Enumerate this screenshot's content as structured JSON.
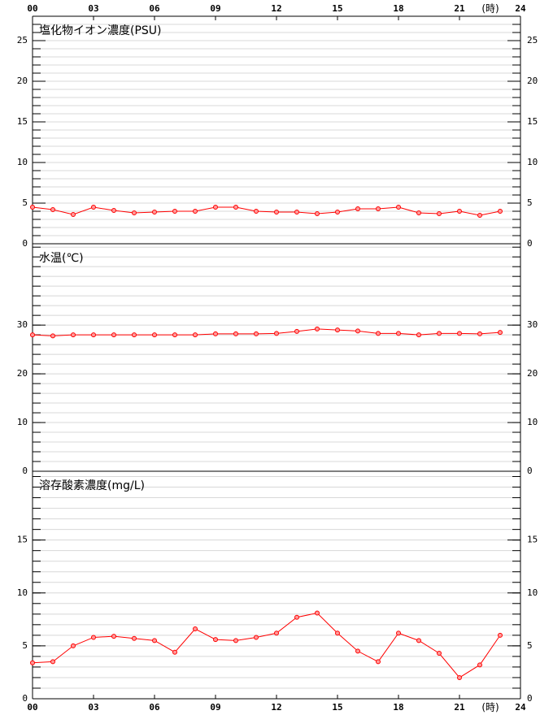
{
  "chart_data": [
    {
      "type": "line",
      "title": "塩化物イオン濃度(PSU)",
      "x": [
        0,
        1,
        2,
        3,
        4,
        5,
        6,
        7,
        8,
        9,
        10,
        11,
        12,
        13,
        14,
        15,
        16,
        17,
        18,
        19,
        20,
        21,
        22,
        23
      ],
      "values": [
        4.5,
        4.2,
        3.6,
        4.5,
        4.1,
        3.8,
        3.9,
        4.0,
        4.0,
        4.5,
        4.5,
        4.0,
        3.9,
        3.9,
        3.7,
        3.9,
        4.3,
        4.3,
        4.5,
        3.8,
        3.7,
        4.0,
        3.5,
        4.0
      ],
      "color": "#ff0000",
      "xlim": [
        0,
        24
      ],
      "xticks": [
        {
          "value": 0,
          "label": "00"
        },
        {
          "value": 3,
          "label": "03"
        },
        {
          "value": 6,
          "label": "06"
        },
        {
          "value": 9,
          "label": "09"
        },
        12,
        15,
        18,
        21,
        24
      ],
      "x_unit": "(時)",
      "ylim": [
        0,
        28
      ],
      "yticks": [
        0,
        5,
        10,
        15,
        20,
        25
      ],
      "grid_step": 1
    },
    {
      "type": "line",
      "title": "水温(℃)",
      "x": [
        0,
        1,
        2,
        3,
        4,
        5,
        6,
        7,
        8,
        9,
        10,
        11,
        12,
        13,
        14,
        15,
        16,
        17,
        18,
        19,
        20,
        21,
        22,
        23
      ],
      "values": [
        28.0,
        27.8,
        28.0,
        28.0,
        28.0,
        28.0,
        28.0,
        28.0,
        28.0,
        28.2,
        28.2,
        28.2,
        28.3,
        28.7,
        29.2,
        29.0,
        28.8,
        28.3,
        28.3,
        28.0,
        28.3,
        28.3,
        28.2,
        28.5
      ],
      "color": "#ff0000",
      "xlim": [
        0,
        24
      ],
      "ylim": [
        0,
        46.7
      ],
      "yticks": [
        0,
        10,
        20,
        30
      ],
      "grid_step": 2
    },
    {
      "type": "line",
      "title": "溶存酸素濃度(mg/L)",
      "x": [
        0,
        1,
        2,
        3,
        4,
        5,
        6,
        7,
        8,
        9,
        10,
        11,
        12,
        13,
        14,
        15,
        16,
        17,
        18,
        19,
        20,
        21,
        22,
        23
      ],
      "values": [
        3.4,
        3.5,
        5.0,
        5.8,
        5.9,
        5.7,
        5.5,
        4.4,
        6.6,
        5.6,
        5.5,
        5.8,
        6.2,
        7.7,
        8.1,
        6.2,
        4.5,
        3.5,
        6.2,
        5.5,
        4.3,
        2.0,
        3.2,
        6.0
      ],
      "color": "#ff0000",
      "xlim": [
        0,
        24
      ],
      "xticks": [
        {
          "value": 0,
          "label": "00"
        },
        {
          "value": 3,
          "label": "03"
        },
        {
          "value": 6,
          "label": "06"
        },
        {
          "value": 9,
          "label": "09"
        },
        12,
        15,
        18,
        21,
        24
      ],
      "x_unit": "(時)",
      "ylim": [
        0,
        21.5
      ],
      "yticks": [
        0,
        5,
        10,
        15
      ],
      "grid_step": 1
    }
  ]
}
